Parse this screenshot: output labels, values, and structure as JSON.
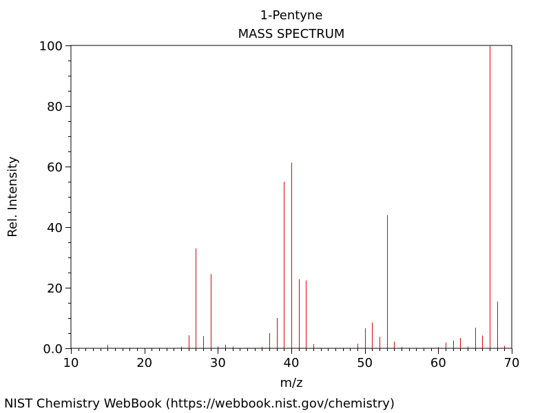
{
  "chart_data": {
    "type": "bar",
    "title": "1-Pentyne",
    "subtitle": "MASS SPECTRUM",
    "xlabel": "m/z",
    "ylabel": "Rel. Intensity",
    "xlim": [
      10,
      70
    ],
    "ylim": [
      0,
      100
    ],
    "xticks": [
      "10",
      "20",
      "30",
      "40",
      "50",
      "60",
      "70"
    ],
    "yticks": [
      "0.0",
      "20",
      "40",
      "60",
      "80",
      "100"
    ],
    "bar_color": "#dd0000",
    "grid": false,
    "peaks": [
      {
        "x": 15,
        "y": 1.2
      },
      {
        "x": 25,
        "y": 0.5
      },
      {
        "x": 26,
        "y": 4.3
      },
      {
        "x": 27,
        "y": 33
      },
      {
        "x": 28,
        "y": 4
      },
      {
        "x": 29,
        "y": 24.5
      },
      {
        "x": 30,
        "y": 0.6
      },
      {
        "x": 31,
        "y": 1.2
      },
      {
        "x": 32,
        "y": 0.6
      },
      {
        "x": 36,
        "y": 0.4
      },
      {
        "x": 37,
        "y": 5
      },
      {
        "x": 38,
        "y": 10
      },
      {
        "x": 39,
        "y": 55
      },
      {
        "x": 40,
        "y": 61.3
      },
      {
        "x": 41,
        "y": 22.8
      },
      {
        "x": 42,
        "y": 22.4
      },
      {
        "x": 43,
        "y": 1.4
      },
      {
        "x": 49,
        "y": 1.5
      },
      {
        "x": 50,
        "y": 6.6
      },
      {
        "x": 51,
        "y": 8.5
      },
      {
        "x": 52,
        "y": 3.8
      },
      {
        "x": 53,
        "y": 44
      },
      {
        "x": 54,
        "y": 2.2
      },
      {
        "x": 55,
        "y": 0.4
      },
      {
        "x": 60,
        "y": 0.4
      },
      {
        "x": 61,
        "y": 1.9
      },
      {
        "x": 62,
        "y": 2.6
      },
      {
        "x": 63,
        "y": 3.4
      },
      {
        "x": 64,
        "y": 0.6
      },
      {
        "x": 65,
        "y": 6.8
      },
      {
        "x": 66,
        "y": 4.2
      },
      {
        "x": 67,
        "y": 100
      },
      {
        "x": 68,
        "y": 15.4
      },
      {
        "x": 69,
        "y": 0.8
      }
    ]
  },
  "footer": {
    "credit": "NIST Chemistry WebBook (https://webbook.nist.gov/chemistry)"
  }
}
